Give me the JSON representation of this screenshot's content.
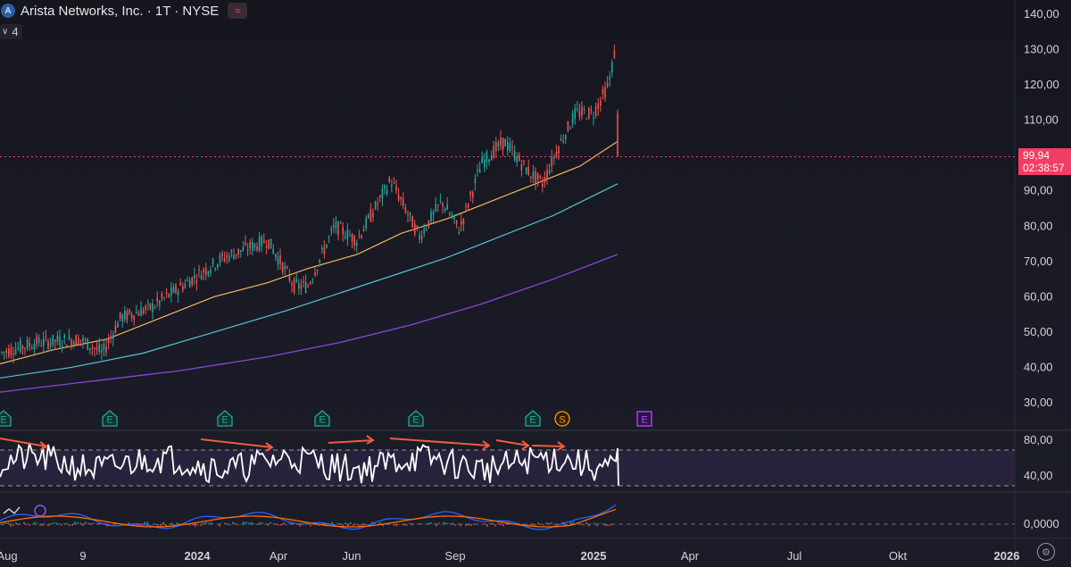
{
  "header": {
    "logo_letter": "A",
    "title": "Arista Networks, Inc. · 1T · NYSE",
    "symbol_icon_glyph": "≈"
  },
  "indicator_toggle": {
    "count": "4"
  },
  "price_tag": {
    "price": "99,94",
    "countdown": "02:38:57"
  },
  "price_axis": {
    "labels": [
      "140,00",
      "130,00",
      "120,00",
      "110,00",
      "90,00",
      "80,00",
      "70,00",
      "60,00",
      "50,00",
      "40,00",
      "30,00"
    ],
    "range": [
      26,
      143
    ]
  },
  "rsi_axis": {
    "labels": [
      "80,00",
      "40,00"
    ]
  },
  "macd_axis": {
    "labels": [
      "0,0000"
    ]
  },
  "time_axis": {
    "labels": [
      "Aug",
      "9",
      "2024",
      "Apr",
      "Jun",
      "Sep",
      "2025",
      "Apr",
      "Jul",
      "Okt",
      "2026"
    ]
  },
  "events": [
    {
      "type": "E"
    },
    {
      "type": "E"
    },
    {
      "type": "E"
    },
    {
      "type": "E"
    },
    {
      "type": "E"
    },
    {
      "type": "E"
    },
    {
      "type": "S"
    },
    {
      "type": "E"
    }
  ],
  "colors": {
    "up": "#26a69a",
    "down": "#ef5350",
    "ma_short": "#f5b461",
    "ma_mid": "#56c2d6",
    "ma_long": "#8e44e0",
    "rsi": "#ffffff",
    "rsi_band": "#2a2440",
    "divergence": "#f05a44",
    "macd_line": "#2962ff",
    "signal_line": "#ff6d00",
    "price_line": "#f23d65"
  },
  "chart_data": {
    "type": "candlestick",
    "current_price": 99.94,
    "ylim": [
      26,
      143
    ],
    "rsi_levels": [
      70,
      30
    ]
  }
}
